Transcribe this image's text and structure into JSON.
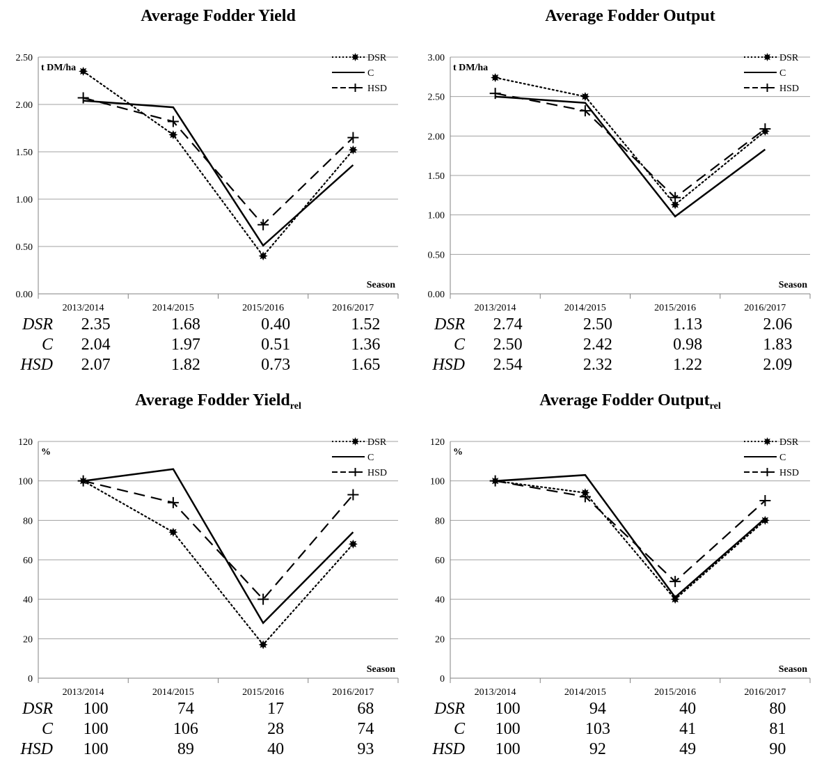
{
  "legend_labels": [
    "DSR",
    "C",
    "HSD"
  ],
  "colors": {
    "line": "#000000",
    "grid": "#a0a0a0",
    "axis": "#808080"
  },
  "chart_data": [
    {
      "type": "line",
      "title": "Average Fodder Yield",
      "title_sub": "",
      "ylabel": "t DM/ha",
      "xlabel": "Season",
      "categories": [
        "2013/2014",
        "2014/2015",
        "2015/2016",
        "2016/2017"
      ],
      "ylim": [
        0,
        2.5
      ],
      "yticks": [
        "0.00",
        "0.50",
        "1.00",
        "1.50",
        "2.00",
        "2.50"
      ],
      "series": [
        {
          "name": "DSR",
          "values": [
            2.35,
            1.68,
            0.4,
            1.52
          ],
          "display": [
            "2.35",
            "1.68",
            "0.40",
            "1.52"
          ],
          "style": "dotted",
          "marker": "dot"
        },
        {
          "name": "C",
          "values": [
            2.04,
            1.97,
            0.51,
            1.36
          ],
          "display": [
            "2.04",
            "1.97",
            "0.51",
            "1.36"
          ],
          "style": "solid",
          "marker": "none"
        },
        {
          "name": "HSD",
          "values": [
            2.07,
            1.82,
            0.73,
            1.65
          ],
          "display": [
            "2.07",
            "1.82",
            "0.73",
            "1.65"
          ],
          "style": "dashed",
          "marker": "plus"
        }
      ],
      "grid": true,
      "legend": "top-right"
    },
    {
      "type": "line",
      "title": "Average Fodder Output",
      "title_sub": "",
      "ylabel": "t DM/ha",
      "xlabel": "Season",
      "categories": [
        "2013/2014",
        "2014/2015",
        "2015/2016",
        "2016/2017"
      ],
      "ylim": [
        0,
        3.0
      ],
      "yticks": [
        "0.00",
        "0.50",
        "1.00",
        "1.50",
        "2.00",
        "2.50",
        "3.00"
      ],
      "series": [
        {
          "name": "DSR",
          "values": [
            2.74,
            2.5,
            1.13,
            2.06
          ],
          "display": [
            "2.74",
            "2.50",
            "1.13",
            "2.06"
          ],
          "style": "dotted",
          "marker": "dot"
        },
        {
          "name": "C",
          "values": [
            2.5,
            2.42,
            0.98,
            1.83
          ],
          "display": [
            "2.50",
            "2.42",
            "0.98",
            "1.83"
          ],
          "style": "solid",
          "marker": "none"
        },
        {
          "name": "HSD",
          "values": [
            2.54,
            2.32,
            1.22,
            2.09
          ],
          "display": [
            "2.54",
            "2.32",
            "1.22",
            "2.09"
          ],
          "style": "dashed",
          "marker": "plus"
        }
      ],
      "grid": true,
      "legend": "top-right"
    },
    {
      "type": "line",
      "title": "Average Fodder Yield",
      "title_sub": "rel",
      "ylabel": "%",
      "xlabel": "Season",
      "categories": [
        "2013/2014",
        "2014/2015",
        "2015/2016",
        "2016/2017"
      ],
      "ylim": [
        0,
        120
      ],
      "yticks": [
        "0",
        "20",
        "40",
        "60",
        "80",
        "100",
        "120"
      ],
      "series": [
        {
          "name": "DSR",
          "values": [
            100,
            74,
            17,
            68
          ],
          "display": [
            "100",
            "74",
            "17",
            "68"
          ],
          "style": "dotted",
          "marker": "dot"
        },
        {
          "name": "C",
          "values": [
            100,
            106,
            28,
            74
          ],
          "display": [
            "100",
            "106",
            "28",
            "74"
          ],
          "style": "solid",
          "marker": "none"
        },
        {
          "name": "HSD",
          "values": [
            100,
            89,
            40,
            93
          ],
          "display": [
            "100",
            "89",
            "40",
            "93"
          ],
          "style": "dashed",
          "marker": "plus"
        }
      ],
      "grid": true,
      "legend": "top-right"
    },
    {
      "type": "line",
      "title": "Average Fodder Output",
      "title_sub": "rel",
      "ylabel": "%",
      "xlabel": "Season",
      "categories": [
        "2013/2014",
        "2014/2015",
        "2015/2016",
        "2016/2017"
      ],
      "ylim": [
        0,
        120
      ],
      "yticks": [
        "0",
        "20",
        "40",
        "60",
        "80",
        "100",
        "120"
      ],
      "series": [
        {
          "name": "DSR",
          "values": [
            100,
            94,
            40,
            80
          ],
          "display": [
            "100",
            "94",
            "40",
            "80"
          ],
          "style": "dotted",
          "marker": "dot"
        },
        {
          "name": "C",
          "values": [
            100,
            103,
            41,
            81
          ],
          "display": [
            "100",
            "103",
            "41",
            "81"
          ],
          "style": "solid",
          "marker": "none"
        },
        {
          "name": "HSD",
          "values": [
            100,
            92,
            49,
            90
          ],
          "display": [
            "100",
            "92",
            "49",
            "90"
          ],
          "style": "dashed",
          "marker": "plus"
        }
      ],
      "grid": true,
      "legend": "top-right"
    }
  ]
}
